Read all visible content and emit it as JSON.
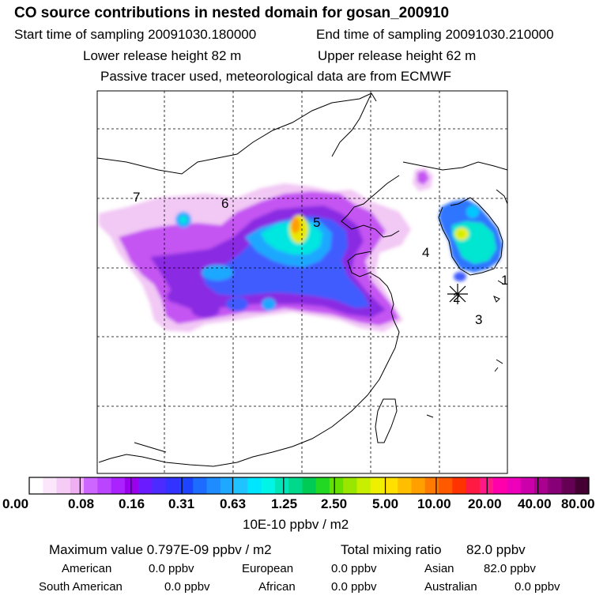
{
  "header": {
    "title": "CO  source contributions in nested domain for gosan_200910",
    "start_label": "Start time of sampling 20091030.180000",
    "end_label": "End time of sampling 20091030.210000",
    "lower_label": "Lower release height   82 m",
    "upper_label": "Upper release height   62 m",
    "note": "Passive tracer used, meteorological data are from ECMWF"
  },
  "map": {
    "region_labels": [
      "7",
      "6",
      "5",
      "4",
      "1",
      "2",
      "3"
    ],
    "receptor_marker": "asterisk-icon"
  },
  "colorbar": {
    "tick_labels": [
      "0.00",
      "0.08",
      "0.16",
      "0.31",
      "0.63",
      "1.25",
      "2.50",
      "5.00",
      "10.00",
      "20.00",
      "40.00",
      "80.00"
    ],
    "colors": [
      "#ffffff",
      "#fbe6fb",
      "#f5ccf6",
      "#eeb0f1",
      "#cc66ff",
      "#bb44ff",
      "#aa22ff",
      "#9900ee",
      "#6a1bff",
      "#4b2bff",
      "#3333ff",
      "#1f44ff",
      "#1e6bff",
      "#1e8bff",
      "#1ea8ff",
      "#1ec3ff",
      "#00e6ff",
      "#00f5e8",
      "#00e6b8",
      "#00d88c",
      "#00cc55",
      "#22d822",
      "#66e000",
      "#99e600",
      "#c8ee00",
      "#eef000",
      "#ffe000",
      "#ffbf00",
      "#ff9f00",
      "#ff7a00",
      "#ff5a00",
      "#ff3300",
      "#ff1a44",
      "#ff1a88",
      "#ff00aa",
      "#ee00bb",
      "#cc00aa",
      "#aa008f",
      "#880077",
      "#660055",
      "#440033"
    ],
    "unit": "10E-10 ppbv / m2"
  },
  "footer": {
    "max_value": "Maximum value  0.797E-09 ppbv / m2",
    "total_mixing": "Total mixing ratio",
    "total_mixing_value": "82.0 ppbv",
    "row1": [
      {
        "label": "American",
        "value": "0.0 ppbv"
      },
      {
        "label": "European",
        "value": "0.0 ppbv"
      },
      {
        "label": "Asian",
        "value": "82.0 ppbv"
      }
    ],
    "row2": [
      {
        "label": "South American",
        "value": "0.0 ppbv"
      },
      {
        "label": "African",
        "value": "0.0 ppbv"
      },
      {
        "label": "Australian",
        "value": "0.0 ppbv"
      }
    ]
  }
}
